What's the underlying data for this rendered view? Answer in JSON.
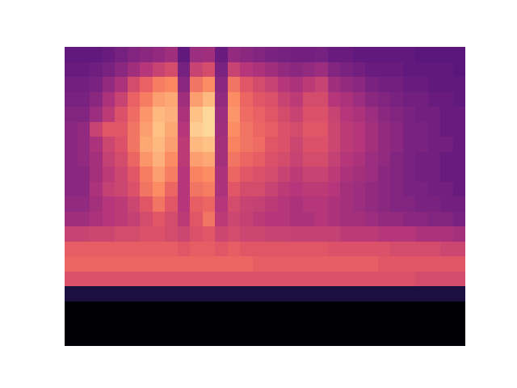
{
  "chart_data": {
    "type": "heatmap",
    "tick_labels": false,
    "zlim": [
      0,
      100
    ],
    "cells": [
      [
        30,
        30,
        30,
        32,
        35,
        38,
        40,
        42,
        45,
        30,
        44,
        45,
        32,
        42,
        40,
        38,
        36,
        35,
        34,
        34,
        35,
        32,
        32,
        30,
        30,
        30,
        30,
        30,
        28,
        28,
        28,
        28
      ],
      [
        32,
        32,
        33,
        36,
        40,
        45,
        50,
        55,
        58,
        35,
        55,
        58,
        36,
        55,
        50,
        48,
        45,
        42,
        40,
        42,
        44,
        38,
        36,
        34,
        32,
        32,
        32,
        30,
        30,
        30,
        30,
        28
      ],
      [
        34,
        34,
        36,
        42,
        48,
        58,
        65,
        72,
        75,
        40,
        70,
        76,
        40,
        70,
        62,
        58,
        55,
        50,
        48,
        52,
        55,
        45,
        42,
        40,
        36,
        34,
        34,
        32,
        32,
        30,
        30,
        30
      ],
      [
        36,
        36,
        40,
        48,
        55,
        65,
        72,
        80,
        82,
        45,
        80,
        86,
        42,
        76,
        66,
        62,
        60,
        55,
        52,
        58,
        58,
        50,
        48,
        44,
        40,
        38,
        36,
        34,
        34,
        32,
        32,
        30
      ],
      [
        38,
        38,
        44,
        52,
        60,
        68,
        78,
        86,
        84,
        48,
        88,
        92,
        44,
        78,
        68,
        65,
        62,
        58,
        55,
        60,
        60,
        55,
        50,
        48,
        44,
        40,
        38,
        36,
        34,
        34,
        32,
        32
      ],
      [
        40,
        42,
        55,
        62,
        62,
        70,
        80,
        88,
        82,
        50,
        90,
        92,
        45,
        76,
        70,
        66,
        64,
        60,
        58,
        62,
        62,
        56,
        52,
        50,
        46,
        42,
        40,
        36,
        36,
        34,
        32,
        32
      ],
      [
        40,
        42,
        48,
        56,
        60,
        70,
        82,
        86,
        80,
        52,
        86,
        88,
        46,
        74,
        70,
        68,
        62,
        60,
        56,
        60,
        60,
        56,
        52,
        50,
        46,
        42,
        40,
        36,
        36,
        34,
        34,
        32
      ],
      [
        40,
        42,
        46,
        54,
        58,
        66,
        78,
        84,
        76,
        52,
        80,
        82,
        46,
        70,
        66,
        64,
        60,
        58,
        55,
        58,
        58,
        54,
        50,
        48,
        44,
        42,
        38,
        36,
        34,
        34,
        32,
        32
      ],
      [
        40,
        40,
        46,
        52,
        56,
        62,
        72,
        80,
        72,
        50,
        74,
        76,
        48,
        66,
        62,
        60,
        58,
        55,
        52,
        55,
        55,
        52,
        48,
        46,
        44,
        40,
        38,
        36,
        34,
        34,
        32,
        32
      ],
      [
        40,
        40,
        48,
        54,
        56,
        60,
        70,
        76,
        66,
        50,
        70,
        72,
        48,
        62,
        58,
        58,
        55,
        52,
        50,
        52,
        52,
        50,
        46,
        44,
        42,
        40,
        38,
        36,
        36,
        34,
        34,
        32
      ],
      [
        42,
        42,
        46,
        50,
        52,
        56,
        62,
        70,
        62,
        50,
        64,
        66,
        50,
        58,
        55,
        54,
        52,
        50,
        48,
        50,
        50,
        48,
        46,
        44,
        42,
        40,
        38,
        38,
        36,
        36,
        34,
        34
      ],
      [
        45,
        45,
        48,
        50,
        52,
        54,
        58,
        62,
        58,
        52,
        62,
        70,
        52,
        56,
        54,
        52,
        50,
        50,
        48,
        48,
        50,
        48,
        46,
        46,
        44,
        42,
        42,
        40,
        40,
        38,
        38,
        36
      ],
      [
        55,
        55,
        56,
        56,
        58,
        58,
        60,
        60,
        58,
        56,
        60,
        62,
        56,
        58,
        56,
        56,
        55,
        55,
        54,
        54,
        54,
        54,
        52,
        52,
        52,
        50,
        50,
        50,
        48,
        48,
        48,
        46
      ],
      [
        64,
        64,
        64,
        64,
        64,
        64,
        64,
        64,
        64,
        62,
        64,
        64,
        62,
        64,
        62,
        62,
        62,
        62,
        62,
        62,
        62,
        60,
        60,
        60,
        60,
        60,
        58,
        58,
        58,
        58,
        56,
        56
      ],
      [
        66,
        66,
        66,
        66,
        66,
        66,
        66,
        66,
        66,
        66,
        66,
        66,
        66,
        66,
        66,
        64,
        64,
        64,
        64,
        64,
        64,
        64,
        64,
        64,
        64,
        62,
        62,
        62,
        62,
        62,
        62,
        62
      ],
      [
        60,
        60,
        60,
        60,
        60,
        60,
        60,
        60,
        60,
        60,
        60,
        60,
        60,
        60,
        60,
        60,
        60,
        60,
        60,
        60,
        60,
        60,
        60,
        60,
        60,
        60,
        60,
        60,
        58,
        58,
        58,
        58
      ],
      [
        12,
        12,
        12,
        12,
        12,
        12,
        12,
        12,
        12,
        12,
        12,
        12,
        12,
        12,
        12,
        12,
        12,
        12,
        12,
        12,
        12,
        12,
        12,
        12,
        12,
        12,
        12,
        12,
        12,
        12,
        12,
        12
      ],
      [
        0,
        0,
        0,
        0,
        0,
        0,
        0,
        0,
        0,
        0,
        0,
        0,
        0,
        0,
        0,
        0,
        0,
        0,
        0,
        0,
        0,
        0,
        0,
        0,
        0,
        0,
        0,
        0,
        0,
        0,
        0,
        0
      ],
      [
        0,
        0,
        0,
        0,
        0,
        0,
        0,
        0,
        0,
        0,
        0,
        0,
        0,
        0,
        0,
        0,
        0,
        0,
        0,
        0,
        0,
        0,
        0,
        0,
        0,
        0,
        0,
        0,
        0,
        0,
        0,
        0
      ],
      [
        0,
        0,
        0,
        0,
        0,
        0,
        0,
        0,
        0,
        0,
        0,
        0,
        0,
        0,
        0,
        0,
        0,
        0,
        0,
        0,
        0,
        0,
        0,
        0,
        0,
        0,
        0,
        0,
        0,
        0,
        0,
        0
      ]
    ]
  }
}
